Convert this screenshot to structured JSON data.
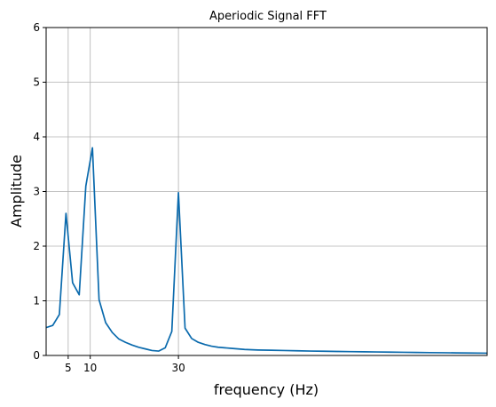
{
  "chart_data": {
    "type": "line",
    "title": "Aperiodic Signal FFT",
    "xlabel": "frequency (Hz)",
    "ylabel": "Amplitude",
    "xlim": [
      0,
      100
    ],
    "ylim": [
      0,
      6
    ],
    "xticks": [
      5,
      10,
      30
    ],
    "yticks": [
      0,
      1,
      2,
      3,
      4,
      5,
      6
    ],
    "grid": true,
    "line_color": "#0a6aad",
    "grid_color": "#b0b0b0",
    "series": [
      {
        "x": [
          0,
          1.5,
          3,
          4.5,
          6,
          7.5,
          9,
          10.5,
          12,
          13.5,
          15,
          16.5,
          18,
          19.5,
          21,
          22.5,
          24,
          25.5,
          27,
          28.5,
          30,
          31.5,
          33,
          34.5,
          36,
          37.5,
          39,
          40.5,
          42,
          45,
          48,
          51,
          54,
          57,
          60,
          63,
          66,
          69,
          72,
          75,
          78,
          81,
          84,
          87,
          90,
          93,
          96,
          100
        ],
        "values": [
          0.51,
          0.55,
          0.75,
          2.6,
          1.33,
          1.11,
          3.1,
          3.8,
          1.02,
          0.6,
          0.42,
          0.3,
          0.24,
          0.19,
          0.15,
          0.12,
          0.09,
          0.08,
          0.14,
          0.44,
          2.98,
          0.5,
          0.31,
          0.24,
          0.2,
          0.17,
          0.15,
          0.14,
          0.13,
          0.11,
          0.1,
          0.095,
          0.09,
          0.085,
          0.08,
          0.077,
          0.073,
          0.07,
          0.067,
          0.064,
          0.061,
          0.058,
          0.055,
          0.052,
          0.05,
          0.047,
          0.045,
          0.042
        ]
      }
    ]
  }
}
